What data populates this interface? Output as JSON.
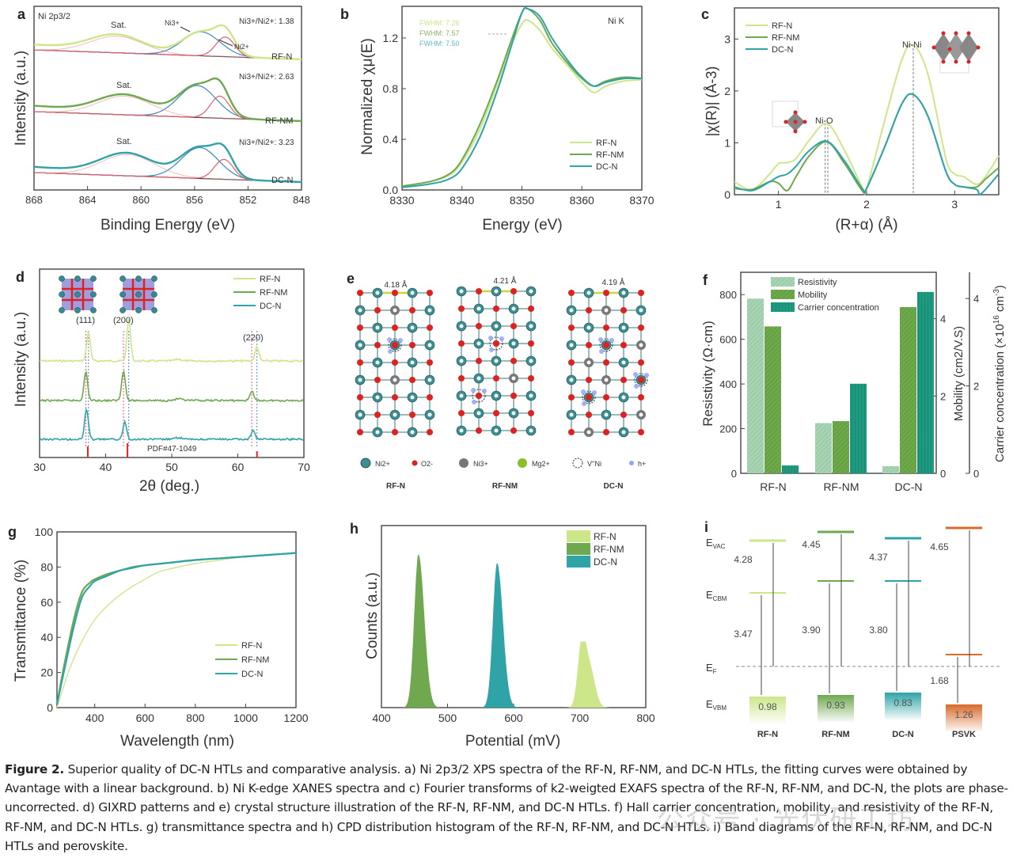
{
  "figure": {
    "caption_title": "Figure 2.",
    "caption_text": "Superior quality of DC-N HTLs and comparative analysis. a) Ni 2p3/2 XPS spectra of the RF-N, RF-NM, and DC-N HTLs, the fitting curves were obtained by Avantage with a linear background. b) Ni K-edge XANES spectra and c) Fourier transforms of k2-weigted EXAFS spectra of the RF-N, RF-NM, and DC-N, the plots are phase-uncorrected. d) GIXRD patterns and e) crystal structure illustration of the RF-N, RF-NM, and DC-N HTLs. f) Hall carrier concentration, mobility, and resistivity of the RF-N, RF-NM, and DC-N HTLs. g) transmittance spectra and h) CPD distribution histogram of the RF-N, RF-NM, and DC-N HTLs. i) Band diagrams of the RF-N, RF-NM, and DC-N HTLs and perovskite.",
    "watermark": "公众号 · 光伏研工坊"
  },
  "colors": {
    "rfn": "#cde68a",
    "rfnm": "#6fa84f",
    "dcn": "#2fa3a6",
    "ni3": "#e0606a",
    "ni2": "#3f86c0",
    "psvk": "#d86a2a"
  },
  "chart_data": [
    {
      "id": "a",
      "type": "line",
      "panel_label": "a",
      "title": "Ni 2p3/2",
      "xlabel": "Binding Energy (eV)",
      "ylabel": "Intensity (a.u.)",
      "xlim": [
        868,
        848
      ],
      "x_ticks": [
        "868",
        "864",
        "860",
        "856",
        "852",
        "848"
      ],
      "series_labels": [
        "RF-N",
        "RF-NM",
        "DC-N"
      ],
      "annotations": {
        "sat": "Sat.",
        "ni3": "Ni3+",
        "ni2": "Ni2+",
        "ratios": [
          "Ni3+/Ni2+: 1.38",
          "Ni3+/Ni2+: 2.63",
          "Ni3+/Ni2+: 3.23"
        ]
      },
      "ratio_values": [
        1.38,
        2.63,
        3.23
      ],
      "peaks": [
        {
          "name": "RF-N",
          "sat": 861.8,
          "ni3": 855.5,
          "ni2": 853.7,
          "ni3_amp": 0.55,
          "ni2_amp": 0.45,
          "sat_amp": 0.38
        },
        {
          "name": "RF-NM",
          "sat": 861.2,
          "ni3": 855.8,
          "ni2": 854.1,
          "ni3_amp": 0.65,
          "ni2_amp": 0.45,
          "sat_amp": 0.38
        },
        {
          "name": "DC-N",
          "sat": 861.0,
          "ni3": 855.6,
          "ni2": 853.8,
          "ni3_amp": 0.65,
          "ni2_amp": 0.42,
          "sat_amp": 0.45
        }
      ]
    },
    {
      "id": "b",
      "type": "line",
      "panel_label": "b",
      "xlabel": "Energy (eV)",
      "ylabel": "Normalized χμ(E)",
      "xlim": [
        8330,
        8370
      ],
      "ylim": [
        0,
        1.45
      ],
      "x_ticks": [
        "8330",
        "8340",
        "8350",
        "8360",
        "8370"
      ],
      "y_ticks": [
        "0.0",
        "0.4",
        "0.8",
        "1.2"
      ],
      "annotation": "Ni K",
      "fwhm_labels": [
        "FWHM: 7.26",
        "FWHM: 7.57",
        "FWHM: 7.50"
      ],
      "fwhm": [
        7.26,
        7.57,
        7.5
      ],
      "legend": [
        "RF-N",
        "RF-NM",
        "DC-N"
      ],
      "series": [
        {
          "name": "RF-N",
          "x": [
            8330,
            8335,
            8338,
            8340,
            8343,
            8346,
            8348,
            8350,
            8351,
            8353,
            8355,
            8358,
            8360,
            8362,
            8364,
            8367,
            8370
          ],
          "y": [
            0.03,
            0.07,
            0.12,
            0.22,
            0.48,
            0.85,
            1.12,
            1.31,
            1.34,
            1.26,
            1.12,
            0.96,
            0.85,
            0.77,
            0.82,
            0.86,
            0.87
          ]
        },
        {
          "name": "RF-NM",
          "x": [
            8330,
            8335,
            8338,
            8340,
            8343,
            8346,
            8348,
            8350,
            8351,
            8353,
            8355,
            8358,
            8360,
            8362,
            8364,
            8367,
            8370
          ],
          "y": [
            0.03,
            0.07,
            0.13,
            0.24,
            0.52,
            0.88,
            1.15,
            1.4,
            1.43,
            1.34,
            1.16,
            0.98,
            0.88,
            0.82,
            0.86,
            0.89,
            0.88
          ]
        },
        {
          "name": "DC-N",
          "x": [
            8330,
            8335,
            8338,
            8340,
            8343,
            8346,
            8348,
            8350,
            8351,
            8353,
            8355,
            8358,
            8360,
            8362,
            8364,
            8367,
            8370
          ],
          "y": [
            0.02,
            0.05,
            0.09,
            0.17,
            0.42,
            0.8,
            1.1,
            1.4,
            1.43,
            1.37,
            1.2,
            1.0,
            0.89,
            0.82,
            0.85,
            0.88,
            0.88
          ]
        }
      ]
    },
    {
      "id": "c",
      "type": "line",
      "panel_label": "c",
      "xlabel": "(R+α) (Å)",
      "ylabel": "|χ(R)| (Å-3)",
      "xlim": [
        0.5,
        3.5
      ],
      "ylim": [
        0,
        3.6
      ],
      "x_ticks": [
        "1",
        "2",
        "3"
      ],
      "y_ticks": [
        "0",
        "1",
        "2",
        "3"
      ],
      "annotations": [
        "Ni-O",
        "Ni-Ni"
      ],
      "legend": [
        "RF-N",
        "RF-NM",
        "DC-N"
      ],
      "series": [
        {
          "name": "RF-N",
          "x": [
            0.5,
            0.7,
            0.9,
            1.0,
            1.1,
            1.2,
            1.35,
            1.55,
            1.75,
            1.95,
            2.0,
            2.2,
            2.4,
            2.53,
            2.7,
            2.9,
            3.0,
            3.1,
            3.25,
            3.35,
            3.5
          ],
          "y": [
            0.25,
            0.1,
            0.4,
            0.6,
            0.62,
            0.7,
            1.05,
            1.37,
            0.85,
            0.15,
            0.12,
            1.4,
            2.6,
            2.88,
            2.3,
            0.7,
            0.4,
            0.35,
            0.2,
            0.35,
            0.75
          ]
        },
        {
          "name": "RF-NM",
          "x": [
            0.5,
            0.7,
            0.9,
            1.0,
            1.1,
            1.2,
            1.35,
            1.55,
            1.75,
            1.95,
            2.0,
            2.2,
            2.4,
            2.53,
            2.7,
            2.9,
            3.0,
            3.1,
            3.25,
            3.35,
            3.5
          ],
          "y": [
            0.12,
            0.1,
            0.25,
            0.22,
            0.08,
            0.35,
            0.75,
            1.02,
            0.6,
            0.08,
            0.12,
            0.9,
            1.75,
            1.93,
            1.5,
            0.45,
            0.2,
            0.15,
            0.15,
            0.3,
            0.52
          ]
        },
        {
          "name": "DC-N",
          "x": [
            0.5,
            0.7,
            0.9,
            1.0,
            1.1,
            1.2,
            1.35,
            1.55,
            1.75,
            1.95,
            2.0,
            2.2,
            2.4,
            2.53,
            2.7,
            2.9,
            3.0,
            3.1,
            3.25,
            3.3,
            3.5
          ],
          "y": [
            0.15,
            0.08,
            0.25,
            0.35,
            0.4,
            0.55,
            0.85,
            1.03,
            0.65,
            0.12,
            0.12,
            0.9,
            1.75,
            1.93,
            1.5,
            0.45,
            0.2,
            0.15,
            0.1,
            0.02,
            0.4
          ]
        }
      ]
    },
    {
      "id": "d",
      "type": "line",
      "panel_label": "d",
      "xlabel": "2θ (deg.)",
      "ylabel": "Intensity (a.u.)",
      "xlim": [
        30,
        70
      ],
      "x_ticks": [
        "30",
        "40",
        "50",
        "60",
        "70"
      ],
      "peak_labels": [
        "(111)",
        "(200)",
        "(220)"
      ],
      "reference_label": "PDF#47-1049",
      "reference_peaks": [
        37.3,
        43.3,
        62.9
      ],
      "legend": [
        "RF-N",
        "RF-NM",
        "DC-N"
      ],
      "series": [
        {
          "name": "RF-N",
          "peaks": [
            37.4,
            43.5,
            62.9
          ],
          "heights": [
            0.9,
            1.3,
            0.45
          ]
        },
        {
          "name": "RF-NM",
          "peaks": [
            37.0,
            42.7,
            62.1
          ],
          "heights": [
            0.9,
            0.95,
            0.3
          ]
        },
        {
          "name": "DC-N",
          "peaks": [
            37.1,
            42.9,
            62.3
          ],
          "heights": [
            0.95,
            0.55,
            0.3
          ]
        }
      ]
    },
    {
      "id": "f",
      "type": "bar",
      "panel_label": "f",
      "categories": [
        "RF-N",
        "RF-NM",
        "DC-N"
      ],
      "ylabel": "Resistivity (Ω·cm)",
      "ylabel2": "Mobility (cm2/V.S)",
      "ylabel3": "Carrier concentration (×10^16 cm^-3)",
      "ylim": [
        0,
        900
      ],
      "ylim2": [
        0,
        5.2
      ],
      "ylim3": [
        0,
        4.6
      ],
      "y_ticks": [
        "0",
        "200",
        "400",
        "600",
        "800"
      ],
      "y2_ticks": [
        "0",
        "2",
        "4"
      ],
      "y3_ticks": [
        "0",
        "2",
        "4"
      ],
      "legend": [
        "Resistivity",
        "Mobility",
        "Carrier concentration"
      ],
      "series": [
        {
          "name": "Resistivity",
          "values": [
            782,
            225,
            32
          ]
        },
        {
          "name": "Mobility",
          "values": [
            3.8,
            1.35,
            4.3
          ]
        },
        {
          "name": "Carrier concentration",
          "values": [
            0.18,
            2.05,
            4.15
          ]
        }
      ]
    },
    {
      "id": "g",
      "type": "line",
      "panel_label": "g",
      "xlabel": "Wavelength (nm)",
      "ylabel": "Transmittance (%)",
      "xlim": [
        250,
        1200
      ],
      "ylim": [
        0,
        100
      ],
      "x_ticks": [
        "400",
        "600",
        "800",
        "1000",
        "1200"
      ],
      "y_ticks": [
        "0",
        "20",
        "40",
        "60",
        "80",
        "100"
      ],
      "legend": [
        "RF-N",
        "RF-NM",
        "DC-N"
      ],
      "series": [
        {
          "name": "RF-N",
          "x": [
            250,
            300,
            350,
            400,
            450,
            500,
            550,
            600,
            650,
            700,
            800,
            900,
            1000,
            1100,
            1200
          ],
          "y": [
            0,
            22,
            38,
            50,
            58,
            64,
            69,
            73,
            77,
            79,
            82,
            84,
            86,
            87,
            88
          ]
        },
        {
          "name": "RF-NM",
          "x": [
            250,
            280,
            320,
            350,
            380,
            400,
            450,
            500,
            550,
            600,
            700,
            800,
            900,
            1000,
            1100,
            1200
          ],
          "y": [
            2,
            25,
            52,
            66,
            71,
            73,
            76,
            78,
            80,
            81,
            82.5,
            84,
            85,
            86,
            87,
            88
          ]
        },
        {
          "name": "DC-N",
          "x": [
            250,
            280,
            320,
            350,
            380,
            400,
            450,
            500,
            550,
            600,
            700,
            800,
            900,
            1000,
            1100,
            1200
          ],
          "y": [
            2,
            22,
            48,
            63,
            69,
            72,
            75,
            78,
            79.5,
            81,
            82.5,
            84,
            85,
            86,
            87,
            88
          ]
        }
      ]
    },
    {
      "id": "h",
      "type": "area",
      "panel_label": "h",
      "xlabel": "Potential (mV)",
      "ylabel": "Counts (a.u.)",
      "xlim": [
        400,
        800
      ],
      "x_ticks": [
        "400",
        "500",
        "600",
        "700",
        "800"
      ],
      "legend": [
        "RF-N",
        "RF-NM",
        "DC-N"
      ],
      "series": [
        {
          "name": "RF-NM",
          "center": 456,
          "width": 8,
          "height": 0.88
        },
        {
          "name": "DC-N",
          "center": 575,
          "width": 8,
          "height": 0.83
        },
        {
          "name": "RF-N",
          "center": 703,
          "width": 12,
          "height": 0.38
        }
      ]
    },
    {
      "id": "i",
      "type": "diagram",
      "panel_label": "i",
      "level_labels": [
        "E_VAC",
        "E_CBM",
        "E_F",
        "E_VBM"
      ],
      "columns": [
        {
          "name": "RF-N",
          "work_function": "4.28",
          "bandgap": "3.47",
          "vbm_offset": "0.98"
        },
        {
          "name": "RF-NM",
          "work_function": "4.45",
          "bandgap": "3.90",
          "vbm_offset": "0.93"
        },
        {
          "name": "DC-N",
          "work_function": "4.37",
          "bandgap": "3.80",
          "vbm_offset": "0.83"
        },
        {
          "name": "PSVK",
          "work_function": "4.65",
          "bandgap": "1.68",
          "vbm_offset": "1.26"
        }
      ]
    }
  ],
  "panel_e": {
    "panel_label": "e",
    "structures": [
      {
        "name": "RF-N",
        "lattice": "4.18 Å"
      },
      {
        "name": "RF-NM",
        "lattice": "4.21 Å"
      },
      {
        "name": "DC-N",
        "lattice": "4.19 Å"
      }
    ],
    "legend": [
      "Ni2+",
      "O2-",
      "Ni3+",
      "Mg2+",
      "V''Ni",
      "h+"
    ]
  }
}
